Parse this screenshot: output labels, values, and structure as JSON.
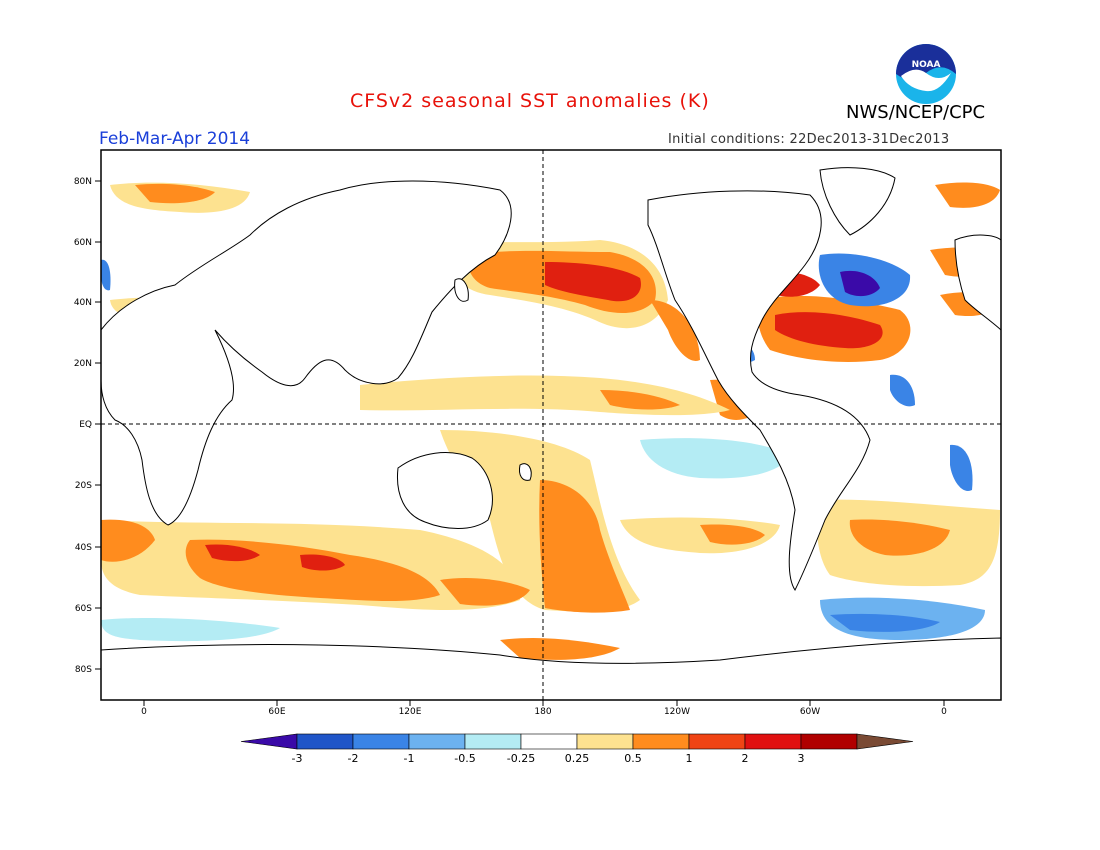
{
  "header": {
    "title": "CFSv2 seasonal SST anomalies (K)",
    "agency": "NWS/NCEP/CPC",
    "logo_text": "NOAA",
    "period": "Feb-Mar-Apr 2014",
    "initial_conditions": "Initial conditions: 22Dec2013-31Dec2013"
  },
  "map": {
    "lat_labels": [
      "80N",
      "60N",
      "40N",
      "20N",
      "EQ",
      "20S",
      "40S",
      "60S",
      "80S"
    ],
    "lon_labels": [
      "0",
      "60E",
      "120E",
      "180",
      "120W",
      "60W",
      "0"
    ]
  },
  "colorbar": {
    "labels": [
      "-3",
      "-2",
      "-1",
      "-0.5",
      "-0.25",
      "0.25",
      "0.5",
      "1",
      "2",
      "3"
    ],
    "colors": [
      "#3a0aa8",
      "#1f55c8",
      "#3a84e6",
      "#6cb2f0",
      "#b4ecf4",
      "#ffffff",
      "#fde290",
      "#ff8c1e",
      "#f04414",
      "#e01010",
      "#b00000",
      "#7a4a34"
    ]
  }
}
